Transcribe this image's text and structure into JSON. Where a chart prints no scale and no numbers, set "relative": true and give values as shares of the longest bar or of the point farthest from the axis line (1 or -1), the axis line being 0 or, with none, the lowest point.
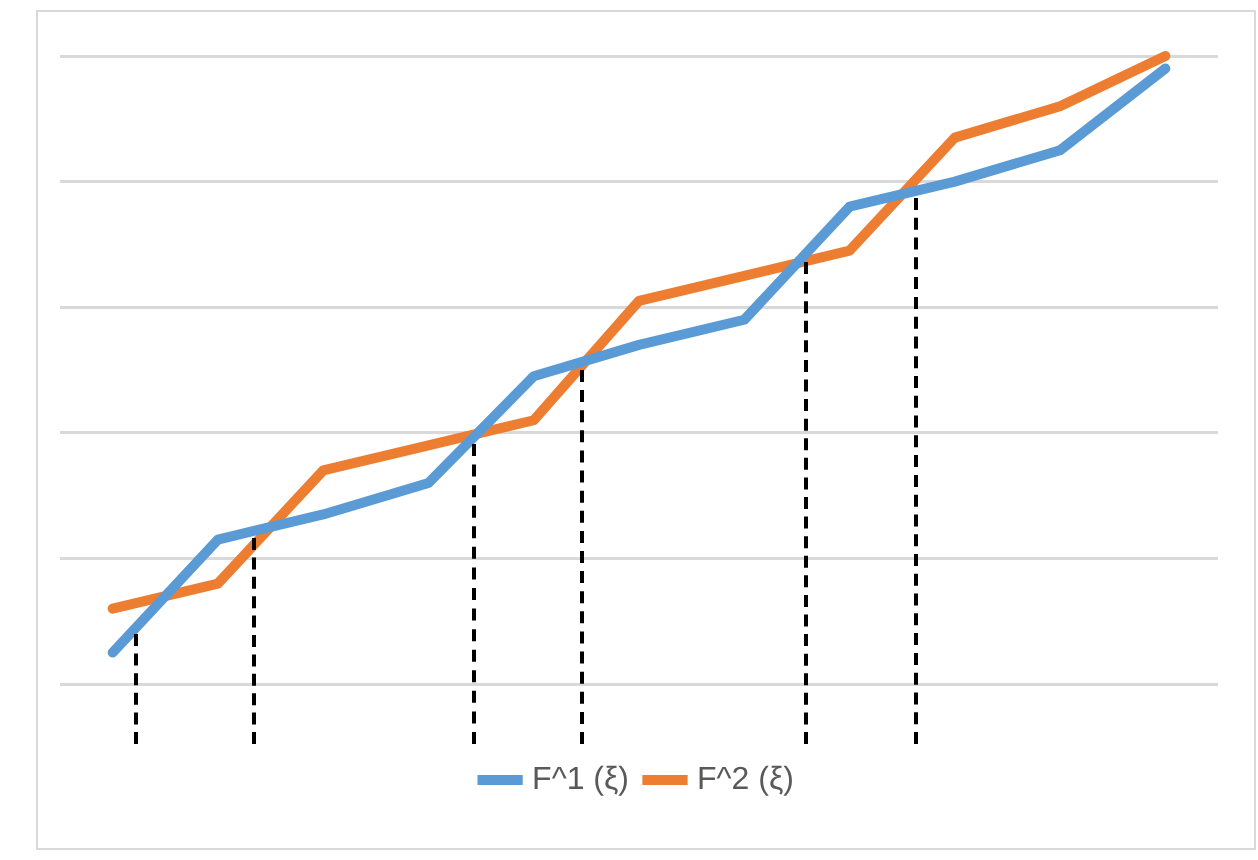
{
  "chart_data": {
    "type": "line",
    "relative": true,
    "categories": [
      null,
      null,
      null,
      null,
      null,
      null,
      null,
      null,
      null,
      null,
      null
    ],
    "grid": "y",
    "legend": "bottom",
    "marker": "none",
    "line_style": "solid",
    "series": [
      {
        "name": "F^1 (ξ)",
        "color": "#5b9bd5",
        "values": [
          0.05,
          0.23,
          0.27,
          0.32,
          0.49,
          0.54,
          0.58,
          0.76,
          0.8,
          0.85,
          0.98
        ]
      },
      {
        "name": "F^2 (ξ)",
        "color": "#ed7d31",
        "values": [
          0.12,
          0.16,
          0.34,
          0.38,
          0.42,
          0.61,
          0.65,
          0.69,
          0.87,
          0.92,
          1
        ]
      }
    ]
  }
}
